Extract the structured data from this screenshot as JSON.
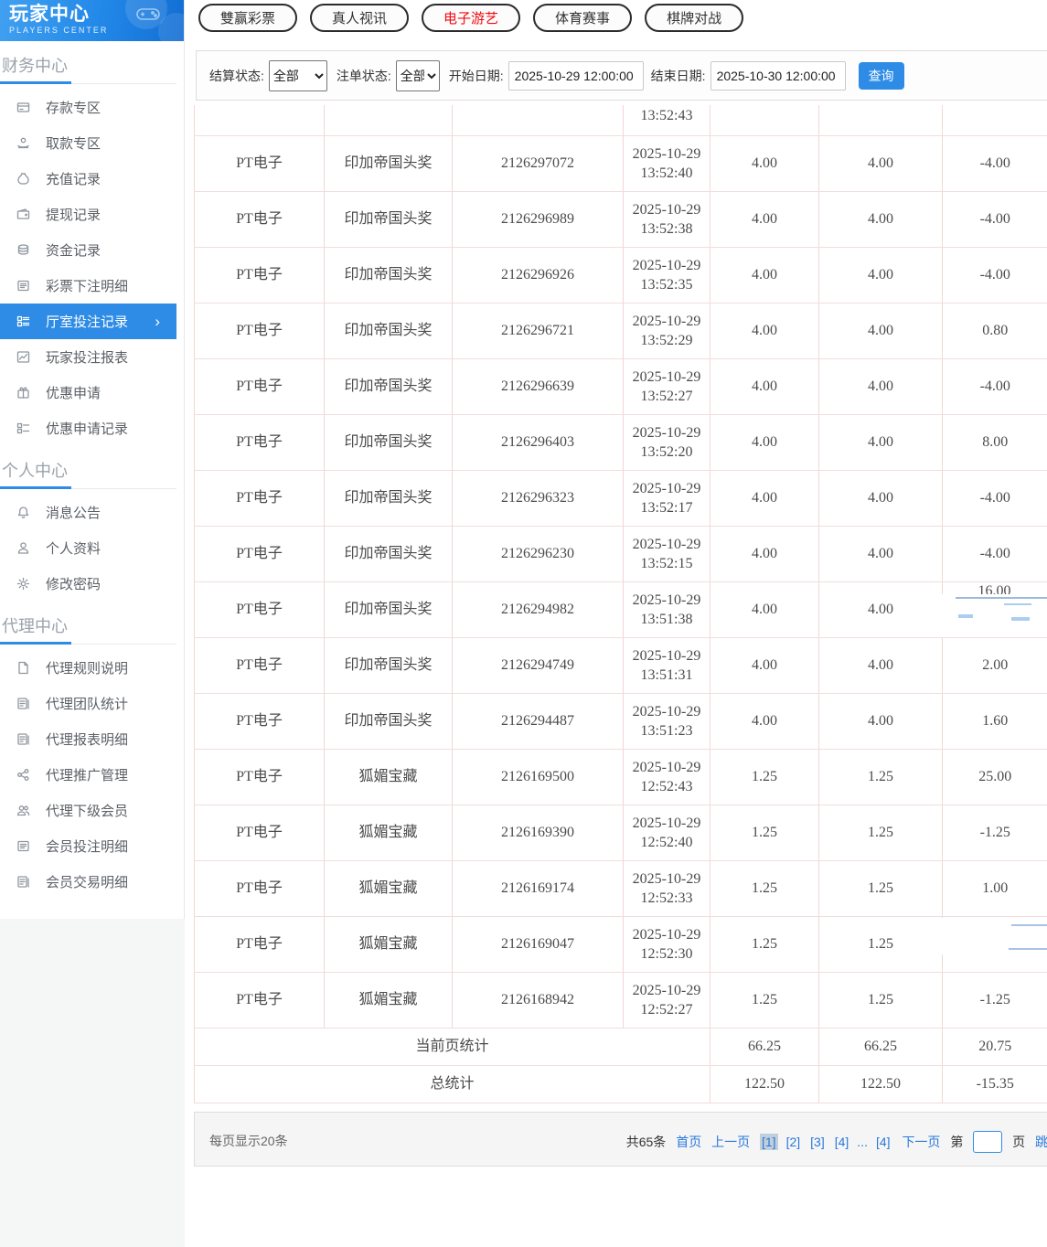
{
  "logo": {
    "title": "玩家中心",
    "subtitle": "PLAYERS CENTER"
  },
  "sidebar": {
    "sections": [
      {
        "title": "财务中心",
        "items": [
          {
            "key": "deposit-zone",
            "label": "存款专区",
            "icon": "bank-card-icon"
          },
          {
            "key": "withdraw-zone",
            "label": "取款专区",
            "icon": "hand-coin-icon"
          },
          {
            "key": "recharge-records",
            "label": "充值记录",
            "icon": "money-bag-icon"
          },
          {
            "key": "withdraw-records",
            "label": "提现记录",
            "icon": "wallet-icon"
          },
          {
            "key": "fund-records",
            "label": "资金记录",
            "icon": "coins-icon"
          },
          {
            "key": "lottery-bet-details",
            "label": "彩票下注明细",
            "icon": "lottery-detail-icon"
          },
          {
            "key": "hall-bet-records",
            "label": "厅室投注记录",
            "icon": "hall-record-icon",
            "active": true
          },
          {
            "key": "player-bet-report",
            "label": "玩家投注报表",
            "icon": "report-chart-icon"
          },
          {
            "key": "promo-apply",
            "label": "优惠申请",
            "icon": "gift-icon"
          },
          {
            "key": "promo-apply-records",
            "label": "优惠申请记录",
            "icon": "promo-record-icon"
          }
        ]
      },
      {
        "title": "个人中心",
        "items": [
          {
            "key": "message-notice",
            "label": "消息公告",
            "icon": "bell-icon"
          },
          {
            "key": "personal-profile",
            "label": "个人资料",
            "icon": "person-icon"
          },
          {
            "key": "change-password",
            "label": "修改密码",
            "icon": "gear-icon"
          }
        ]
      },
      {
        "title": "代理中心",
        "items": [
          {
            "key": "agent-rules",
            "label": "代理规则说明",
            "icon": "file-icon"
          },
          {
            "key": "agent-team-stats",
            "label": "代理团队统计",
            "icon": "team-stats-icon"
          },
          {
            "key": "agent-report-details",
            "label": "代理报表明细",
            "icon": "report-detail-icon"
          },
          {
            "key": "agent-promotion",
            "label": "代理推广管理",
            "icon": "share-icon"
          },
          {
            "key": "agent-sub-members",
            "label": "代理下级会员",
            "icon": "users-icon"
          },
          {
            "key": "member-bet-details",
            "label": "会员投注明细",
            "icon": "member-bet-icon"
          },
          {
            "key": "member-trade-details",
            "label": "会员交易明细",
            "icon": "member-trade-icon"
          }
        ]
      }
    ]
  },
  "tabs": [
    {
      "key": "double-win-lottery",
      "label": "雙赢彩票"
    },
    {
      "key": "live-video",
      "label": "真人视讯"
    },
    {
      "key": "electronic-games",
      "label": "电子游艺",
      "active": true
    },
    {
      "key": "sports-events",
      "label": "体育赛事"
    },
    {
      "key": "board-card-battle",
      "label": "棋牌对战"
    }
  ],
  "filters": {
    "settle_label": "结算状态:",
    "settle_value": "全部",
    "order_label": "注单状态:",
    "order_value": "全部",
    "start_label": "开始日期:",
    "start_value": "2025-10-29 12:00:00",
    "end_label": "结束日期:",
    "end_value": "2025-10-30 12:00:00",
    "query_label": "查询"
  },
  "table": {
    "partial_row_time": "13:52:43",
    "rows": [
      {
        "platform": "PT电子",
        "game": "印加帝国头奖",
        "bet_no": "2126297072",
        "date": "2025-10-29",
        "time": "13:52:40",
        "amount": "4.00",
        "valid": "4.00",
        "result": "-4.00"
      },
      {
        "platform": "PT电子",
        "game": "印加帝国头奖",
        "bet_no": "2126296989",
        "date": "2025-10-29",
        "time": "13:52:38",
        "amount": "4.00",
        "valid": "4.00",
        "result": "-4.00"
      },
      {
        "platform": "PT电子",
        "game": "印加帝国头奖",
        "bet_no": "2126296926",
        "date": "2025-10-29",
        "time": "13:52:35",
        "amount": "4.00",
        "valid": "4.00",
        "result": "-4.00"
      },
      {
        "platform": "PT电子",
        "game": "印加帝国头奖",
        "bet_no": "2126296721",
        "date": "2025-10-29",
        "time": "13:52:29",
        "amount": "4.00",
        "valid": "4.00",
        "result": "0.80"
      },
      {
        "platform": "PT电子",
        "game": "印加帝国头奖",
        "bet_no": "2126296639",
        "date": "2025-10-29",
        "time": "13:52:27",
        "amount": "4.00",
        "valid": "4.00",
        "result": "-4.00"
      },
      {
        "platform": "PT电子",
        "game": "印加帝国头奖",
        "bet_no": "2126296403",
        "date": "2025-10-29",
        "time": "13:52:20",
        "amount": "4.00",
        "valid": "4.00",
        "result": "8.00"
      },
      {
        "platform": "PT电子",
        "game": "印加帝国头奖",
        "bet_no": "2126296323",
        "date": "2025-10-29",
        "time": "13:52:17",
        "amount": "4.00",
        "valid": "4.00",
        "result": "-4.00"
      },
      {
        "platform": "PT电子",
        "game": "印加帝国头奖",
        "bet_no": "2126296230",
        "date": "2025-10-29",
        "time": "13:52:15",
        "amount": "4.00",
        "valid": "4.00",
        "result": "-4.00"
      },
      {
        "platform": "PT电子",
        "game": "印加帝国头奖",
        "bet_no": "2126294982",
        "date": "2025-10-29",
        "time": "13:51:38",
        "amount": "4.00",
        "valid": "4.00",
        "result": "16.00",
        "artifact": "partial"
      },
      {
        "platform": "PT电子",
        "game": "印加帝国头奖",
        "bet_no": "2126294749",
        "date": "2025-10-29",
        "time": "13:51:31",
        "amount": "4.00",
        "valid": "4.00",
        "result": "2.00"
      },
      {
        "platform": "PT电子",
        "game": "印加帝国头奖",
        "bet_no": "2126294487",
        "date": "2025-10-29",
        "time": "13:51:23",
        "amount": "4.00",
        "valid": "4.00",
        "result": "1.60"
      },
      {
        "platform": "PT电子",
        "game": "狐媚宝藏",
        "bet_no": "2126169500",
        "date": "2025-10-29",
        "time": "12:52:43",
        "amount": "1.25",
        "valid": "1.25",
        "result": "25.00"
      },
      {
        "platform": "PT电子",
        "game": "狐媚宝藏",
        "bet_no": "2126169390",
        "date": "2025-10-29",
        "time": "12:52:40",
        "amount": "1.25",
        "valid": "1.25",
        "result": "-1.25"
      },
      {
        "platform": "PT电子",
        "game": "狐媚宝藏",
        "bet_no": "2126169174",
        "date": "2025-10-29",
        "time": "12:52:33",
        "amount": "1.25",
        "valid": "1.25",
        "result": "1.00"
      },
      {
        "platform": "PT电子",
        "game": "狐媚宝藏",
        "bet_no": "2126169047",
        "date": "2025-10-29",
        "time": "12:52:30",
        "amount": "1.25",
        "valid": "1.25",
        "result": "",
        "artifact": "hidden"
      },
      {
        "platform": "PT电子",
        "game": "狐媚宝藏",
        "bet_no": "2126168942",
        "date": "2025-10-29",
        "time": "12:52:27",
        "amount": "1.25",
        "valid": "1.25",
        "result": "-1.25"
      }
    ],
    "page_summary": {
      "label": "当前页统计",
      "amount": "66.25",
      "valid": "66.25",
      "result": "20.75"
    },
    "total_summary": {
      "label": "总统计",
      "amount": "122.50",
      "valid": "122.50",
      "result": "-15.35"
    }
  },
  "pagination": {
    "per_page": "每页显示20条",
    "total": "共65条",
    "first": "首页",
    "prev": "上一页",
    "pages": [
      {
        "label": "[1]",
        "active": true
      },
      {
        "label": "[2]"
      },
      {
        "label": "[3]"
      },
      {
        "label": "[4]"
      },
      {
        "label": "...",
        "ellipsis": true
      },
      {
        "label": "[4]"
      }
    ],
    "next": "下一页",
    "jump_pre": "第",
    "jump_post": "页",
    "jump_label": "跳转"
  },
  "colors": {
    "accent_blue": "#2e8ce6",
    "active_tab_red": "#f2090d",
    "link_blue": "#2879dd",
    "table_border_pink": "#f2d6d6"
  }
}
